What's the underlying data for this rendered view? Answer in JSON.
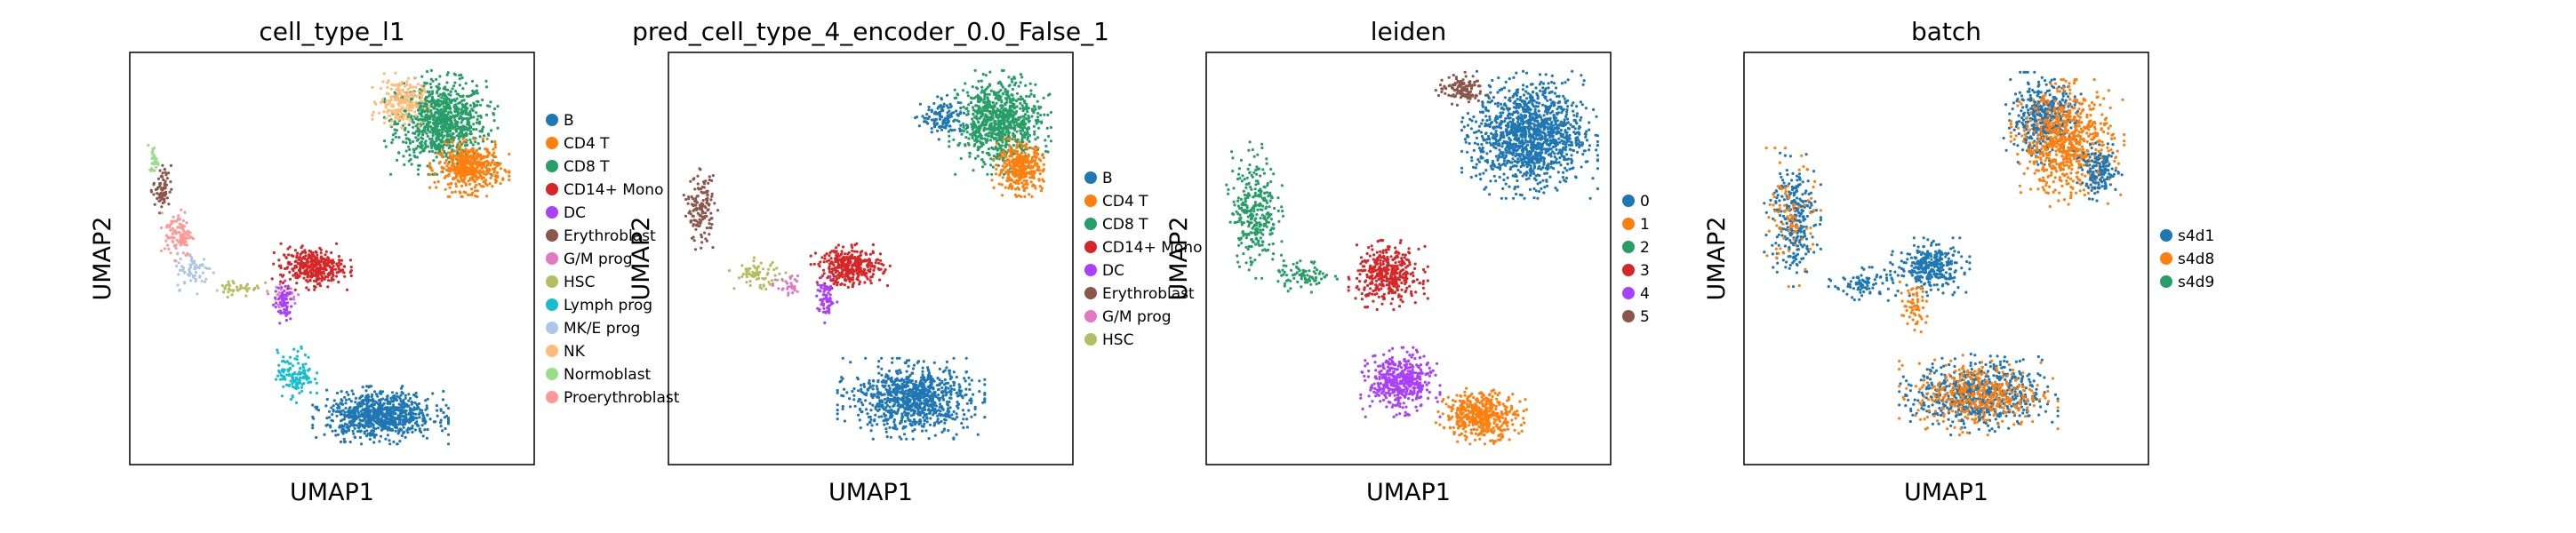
{
  "figure_type": "UMAP embedding scatter panels",
  "chart_data": [
    {
      "type": "scatter",
      "title": "cell_type_l1",
      "xlabel": "UMAP1",
      "ylabel": "UMAP2",
      "grid": false,
      "legend_placement": "right-outside",
      "legend": [
        {
          "label": "B",
          "color": "#1f77b4"
        },
        {
          "label": "CD4 T",
          "color": "#ff7f0e"
        },
        {
          "label": "CD8 T",
          "color": "#279e68"
        },
        {
          "label": "CD14+ Mono",
          "color": "#d62728"
        },
        {
          "label": "DC",
          "color": "#aa40fc"
        },
        {
          "label": "Erythroblast",
          "color": "#8c564b"
        },
        {
          "label": "G/M prog",
          "color": "#e377c2"
        },
        {
          "label": "HSC",
          "color": "#b5bd61"
        },
        {
          "label": "Lymph prog",
          "color": "#17becf"
        },
        {
          "label": "MK/E prog",
          "color": "#aec7e8"
        },
        {
          "label": "NK",
          "color": "#ffbb78"
        },
        {
          "label": "Normoblast",
          "color": "#98df8a"
        },
        {
          "label": "Proerythroblast",
          "color": "#ff9896"
        }
      ],
      "clusters": [
        {
          "category": "CD8 T",
          "x": 0.77,
          "y": 0.83,
          "rx": 0.1,
          "ry": 0.09,
          "n": 900
        },
        {
          "category": "CD4 T",
          "x": 0.84,
          "y": 0.72,
          "rx": 0.07,
          "ry": 0.05,
          "n": 450
        },
        {
          "category": "NK",
          "x": 0.67,
          "y": 0.88,
          "rx": 0.05,
          "ry": 0.05,
          "n": 200
        },
        {
          "category": "Erythroblast",
          "x": 0.08,
          "y": 0.67,
          "rx": 0.02,
          "ry": 0.05,
          "n": 70
        },
        {
          "category": "Proerythroblast",
          "x": 0.12,
          "y": 0.56,
          "rx": 0.03,
          "ry": 0.05,
          "n": 110
        },
        {
          "category": "MK/E prog",
          "x": 0.16,
          "y": 0.47,
          "rx": 0.04,
          "ry": 0.04,
          "n": 70
        },
        {
          "category": "Normoblast",
          "x": 0.06,
          "y": 0.74,
          "rx": 0.01,
          "ry": 0.03,
          "n": 30
        },
        {
          "category": "HSC",
          "x": 0.27,
          "y": 0.43,
          "rx": 0.05,
          "ry": 0.02,
          "n": 40
        },
        {
          "category": "G/M prog",
          "x": 0.38,
          "y": 0.41,
          "rx": 0.03,
          "ry": 0.02,
          "n": 30
        },
        {
          "category": "CD14+ Mono",
          "x": 0.45,
          "y": 0.48,
          "rx": 0.07,
          "ry": 0.04,
          "n": 350
        },
        {
          "category": "DC",
          "x": 0.38,
          "y": 0.39,
          "rx": 0.02,
          "ry": 0.04,
          "n": 70
        },
        {
          "category": "Lymph prog",
          "x": 0.41,
          "y": 0.22,
          "rx": 0.04,
          "ry": 0.05,
          "n": 130
        },
        {
          "category": "B",
          "x": 0.62,
          "y": 0.12,
          "rx": 0.12,
          "ry": 0.05,
          "n": 800
        }
      ]
    },
    {
      "type": "scatter",
      "title": "pred_cell_type_4_encoder_0.0_False_1",
      "xlabel": "UMAP1",
      "ylabel": "UMAP2",
      "grid": false,
      "legend_placement": "right-outside",
      "legend": [
        {
          "label": "B",
          "color": "#1f77b4"
        },
        {
          "label": "CD4 T",
          "color": "#ff7f0e"
        },
        {
          "label": "CD8 T",
          "color": "#279e68"
        },
        {
          "label": "CD14+ Mono",
          "color": "#d62728"
        },
        {
          "label": "DC",
          "color": "#aa40fc"
        },
        {
          "label": "Erythroblast",
          "color": "#8c564b"
        },
        {
          "label": "G/M prog",
          "color": "#e377c2"
        },
        {
          "label": "HSC",
          "color": "#b5bd61"
        }
      ],
      "clusters": [
        {
          "category": "CD8 T",
          "x": 0.82,
          "y": 0.83,
          "rx": 0.09,
          "ry": 0.09,
          "n": 850
        },
        {
          "category": "CD4 T",
          "x": 0.87,
          "y": 0.72,
          "rx": 0.05,
          "ry": 0.05,
          "n": 350
        },
        {
          "category": "B",
          "x": 0.68,
          "y": 0.84,
          "rx": 0.05,
          "ry": 0.04,
          "n": 120
        },
        {
          "category": "Erythroblast",
          "x": 0.08,
          "y": 0.62,
          "rx": 0.03,
          "ry": 0.07,
          "n": 150
        },
        {
          "category": "HSC",
          "x": 0.22,
          "y": 0.46,
          "rx": 0.05,
          "ry": 0.03,
          "n": 70
        },
        {
          "category": "G/M prog",
          "x": 0.3,
          "y": 0.43,
          "rx": 0.03,
          "ry": 0.02,
          "n": 30
        },
        {
          "category": "CD14+ Mono",
          "x": 0.45,
          "y": 0.48,
          "rx": 0.07,
          "ry": 0.04,
          "n": 350
        },
        {
          "category": "DC",
          "x": 0.39,
          "y": 0.4,
          "rx": 0.02,
          "ry": 0.04,
          "n": 70
        },
        {
          "category": "B",
          "x": 0.6,
          "y": 0.16,
          "rx": 0.13,
          "ry": 0.07,
          "n": 900
        }
      ]
    },
    {
      "type": "scatter",
      "title": "leiden",
      "xlabel": "UMAP1",
      "ylabel": "UMAP2",
      "grid": false,
      "legend_placement": "right-outside",
      "legend": [
        {
          "label": "0",
          "color": "#1f77b4"
        },
        {
          "label": "1",
          "color": "#ff7f0e"
        },
        {
          "label": "2",
          "color": "#279e68"
        },
        {
          "label": "3",
          "color": "#d62728"
        },
        {
          "label": "4",
          "color": "#aa40fc"
        },
        {
          "label": "5",
          "color": "#8c564b"
        }
      ],
      "clusters": [
        {
          "category": "0",
          "x": 0.8,
          "y": 0.8,
          "rx": 0.12,
          "ry": 0.11,
          "n": 1300
        },
        {
          "category": "5",
          "x": 0.63,
          "y": 0.91,
          "rx": 0.05,
          "ry": 0.03,
          "n": 120
        },
        {
          "category": "2",
          "x": 0.12,
          "y": 0.62,
          "rx": 0.05,
          "ry": 0.12,
          "n": 300
        },
        {
          "category": "2",
          "x": 0.24,
          "y": 0.46,
          "rx": 0.06,
          "ry": 0.03,
          "n": 80
        },
        {
          "category": "3",
          "x": 0.45,
          "y": 0.46,
          "rx": 0.07,
          "ry": 0.06,
          "n": 400
        },
        {
          "category": "4",
          "x": 0.48,
          "y": 0.2,
          "rx": 0.07,
          "ry": 0.06,
          "n": 450
        },
        {
          "category": "1",
          "x": 0.68,
          "y": 0.12,
          "rx": 0.08,
          "ry": 0.05,
          "n": 450
        }
      ]
    },
    {
      "type": "scatter",
      "title": "batch",
      "xlabel": "UMAP1",
      "ylabel": "UMAP2",
      "grid": false,
      "legend_placement": "right-outside",
      "legend": [
        {
          "label": "s4d1",
          "color": "#1f77b4"
        },
        {
          "label": "s4d8",
          "color": "#ff7f0e"
        },
        {
          "label": "s4d9",
          "color": "#279e68"
        }
      ],
      "clusters": [
        {
          "category": "s4d1",
          "x": 0.74,
          "y": 0.84,
          "rx": 0.07,
          "ry": 0.08,
          "n": 450
        },
        {
          "category": "s4d8",
          "x": 0.8,
          "y": 0.78,
          "rx": 0.1,
          "ry": 0.11,
          "n": 700
        },
        {
          "category": "s4d1",
          "x": 0.88,
          "y": 0.71,
          "rx": 0.04,
          "ry": 0.05,
          "n": 150
        },
        {
          "category": "s4d1",
          "x": 0.12,
          "y": 0.6,
          "rx": 0.05,
          "ry": 0.12,
          "n": 280
        },
        {
          "category": "s4d8",
          "x": 0.12,
          "y": 0.6,
          "rx": 0.05,
          "ry": 0.12,
          "n": 90
        },
        {
          "category": "s4d1",
          "x": 0.3,
          "y": 0.44,
          "rx": 0.07,
          "ry": 0.03,
          "n": 90
        },
        {
          "category": "s4d1",
          "x": 0.46,
          "y": 0.48,
          "rx": 0.07,
          "ry": 0.05,
          "n": 300
        },
        {
          "category": "s4d8",
          "x": 0.42,
          "y": 0.38,
          "rx": 0.03,
          "ry": 0.05,
          "n": 60
        },
        {
          "category": "s4d1",
          "x": 0.58,
          "y": 0.17,
          "rx": 0.14,
          "ry": 0.07,
          "n": 650
        },
        {
          "category": "s4d8",
          "x": 0.58,
          "y": 0.17,
          "rx": 0.14,
          "ry": 0.07,
          "n": 400
        }
      ]
    }
  ]
}
